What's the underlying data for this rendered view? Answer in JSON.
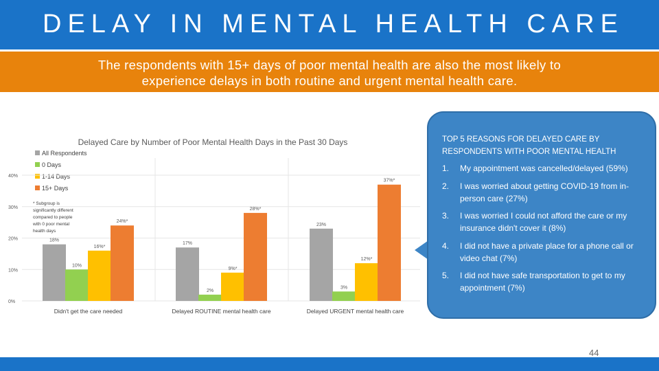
{
  "header": {
    "title": "DELAY IN MENTAL HEALTH CARE",
    "subtitle": "The respondents with 15+ days of poor mental health are also the most likely to experience delays in both routine and urgent mental health care."
  },
  "chart_data": {
    "type": "bar",
    "title": "Delayed Care by Number of Poor Mental Health Days in the Past 30 Days",
    "categories": [
      "Didn't get the care needed",
      "Delayed ROUTINE mental health care",
      "Delayed URGENT mental health care"
    ],
    "series": [
      {
        "name": "All Respondents",
        "color": "#a5a5a5",
        "values": [
          18,
          17,
          23
        ],
        "labels": [
          "18%",
          "17%",
          "23%"
        ]
      },
      {
        "name": "0 Days",
        "color": "#92d050",
        "values": [
          10,
          2,
          3
        ],
        "labels": [
          "10%",
          "2%",
          "3%"
        ]
      },
      {
        "name": "1-14 Days",
        "color": "#ffc000",
        "values": [
          16,
          9,
          12
        ],
        "labels": [
          "16%*",
          "9%*",
          "12%*"
        ]
      },
      {
        "name": "15+ Days",
        "color": "#ed7d31",
        "values": [
          24,
          28,
          37
        ],
        "labels": [
          "24%*",
          "28%*",
          "37%*"
        ]
      }
    ],
    "yticks": [
      "0%",
      "10%",
      "20%",
      "30%",
      "40%"
    ],
    "ylim": [
      0,
      40
    ],
    "legend_position": "top-left",
    "footnote_lines": [
      "* Subgroup is",
      "significantly different",
      "compared to people",
      "with 0 poor mental",
      "health days"
    ]
  },
  "callout": {
    "heading": "TOP 5 REASONS FOR DELAYED CARE BY RESPONDENTS WITH POOR MENTAL HEALTH",
    "reasons": [
      {
        "num": "1.",
        "text": "My appointment was cancelled/delayed (59%)"
      },
      {
        "num": "2.",
        "text": "I was worried about getting COVID-19 from in-person care (27%)"
      },
      {
        "num": "3.",
        "text": "I was worried I could not afford the care or my insurance didn't cover it (8%)"
      },
      {
        "num": "4.",
        "text": "I did not have a private place for a phone call or video chat (7%)"
      },
      {
        "num": "5.",
        "text": "I did not have safe transportation to get to my appointment (7%)"
      }
    ]
  },
  "footer": {
    "page_number": "44"
  }
}
